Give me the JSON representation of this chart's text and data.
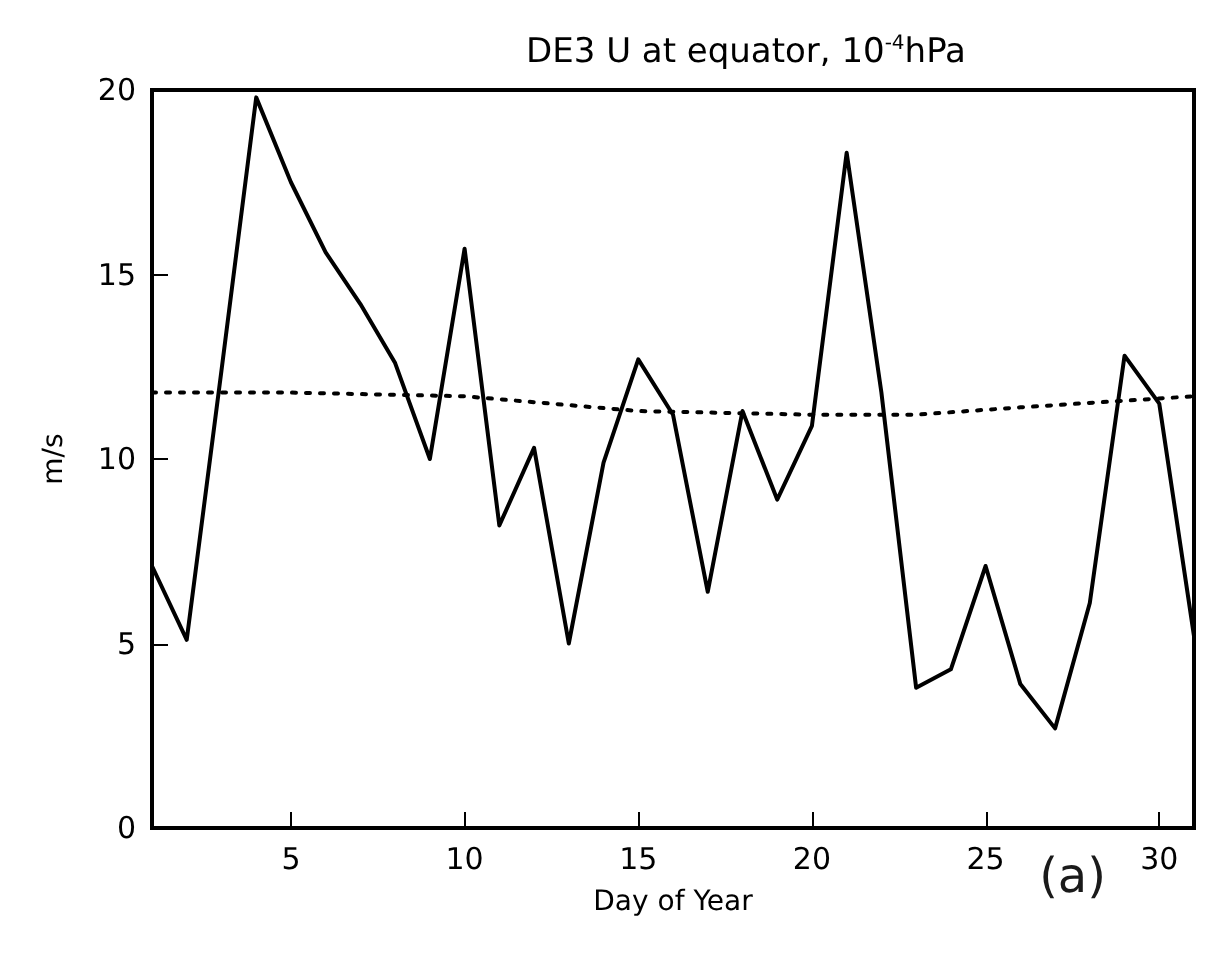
{
  "chart_data": {
    "type": "line",
    "title": "DE3 U at equator, 10$^{-4}$hPa",
    "xlabel": "Day of Year",
    "ylabel": "m/s",
    "annotations": [
      "(a)"
    ],
    "xlim": [
      1,
      31
    ],
    "xticks": [
      5,
      10,
      15,
      20,
      25,
      30
    ],
    "ylim": [
      0,
      20
    ],
    "yticks": [
      0,
      5,
      10,
      15,
      20
    ],
    "grid": false,
    "marker": "none",
    "series": [
      {
        "color": "#000000",
        "line_style": "solid",
        "x": [
          1,
          2,
          3,
          4,
          5,
          6,
          7,
          8,
          9,
          10,
          11,
          12,
          13,
          14,
          15,
          16,
          17,
          18,
          19,
          20,
          21,
          22,
          23,
          24,
          25,
          26,
          27,
          28,
          29,
          30,
          31
        ],
        "values": [
          7.1,
          5.1,
          12.4,
          19.8,
          17.5,
          15.6,
          14.2,
          12.6,
          10.0,
          15.7,
          8.2,
          10.3,
          5.0,
          9.9,
          12.7,
          11.2,
          6.4,
          11.3,
          8.9,
          10.9,
          18.3,
          11.8,
          3.8,
          4.3,
          7.1,
          3.9,
          2.7,
          6.1,
          12.8,
          11.5,
          5.2
        ]
      },
      {
        "color": "#000000",
        "line_style": "dotted",
        "x": [
          1,
          5,
          10,
          15,
          20,
          23,
          26,
          31
        ],
        "values": [
          11.8,
          11.8,
          11.7,
          11.3,
          11.2,
          11.2,
          11.4,
          11.7
        ]
      }
    ]
  }
}
